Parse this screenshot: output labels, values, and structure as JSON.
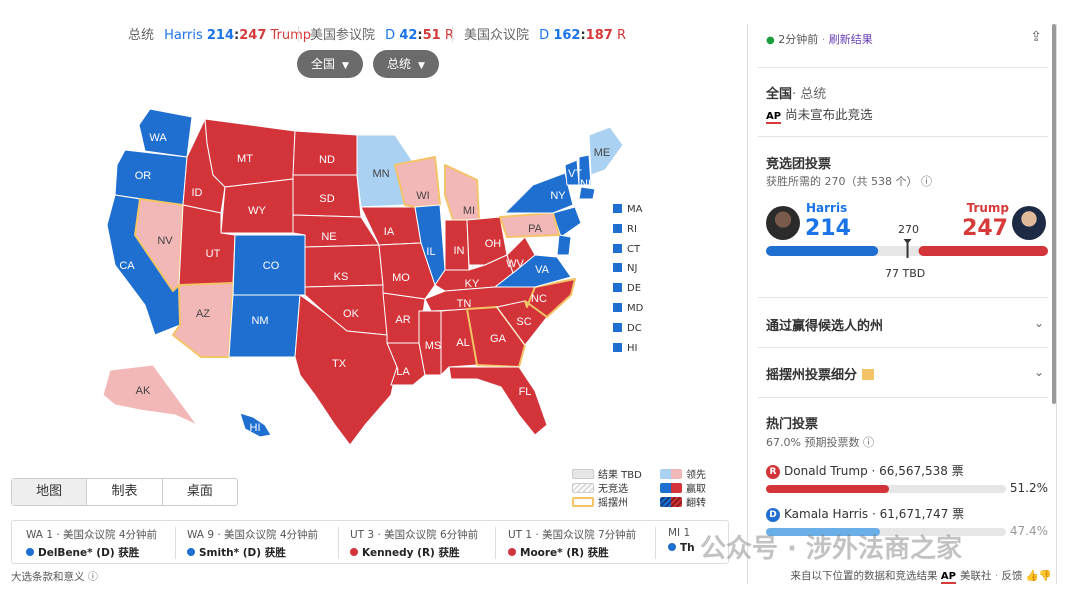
{
  "summary": {
    "president_label": "总统",
    "harris_name": "Harris",
    "harris_ev": "214",
    "sep": ":",
    "trump_ev": "247",
    "trump_name": "Trump",
    "senate_label": "美国参议院",
    "senate_d": "D",
    "senate_d_val": "42",
    "senate_r_val": "51",
    "senate_r": "R",
    "house_label": "美国众议院",
    "house_d": "D",
    "house_d_val": "162",
    "house_r_val": "187",
    "house_r": "R"
  },
  "filters": {
    "scope": "全国",
    "race": "总统"
  },
  "colors": {
    "dem_win": "#1f6fd0",
    "dem_lead": "#abd1f2",
    "rep_win": "#d2343a",
    "rep_lead": "#f2b8b8",
    "tbd": "#e6e6e6",
    "swing_outline": "#f5c367"
  },
  "states": {
    "WA": {
      "label": "WA",
      "status": "dem_win"
    },
    "OR": {
      "label": "OR",
      "status": "dem_win"
    },
    "CA": {
      "label": "CA",
      "status": "dem_win"
    },
    "NV": {
      "label": "NV",
      "status": "rep_lead",
      "swing": true
    },
    "ID": {
      "label": "ID",
      "status": "rep_win"
    },
    "MT": {
      "label": "MT",
      "status": "rep_win"
    },
    "WY": {
      "label": "WY",
      "status": "rep_win"
    },
    "UT": {
      "label": "UT",
      "status": "rep_win"
    },
    "AZ": {
      "label": "AZ",
      "status": "rep_lead",
      "swing": true
    },
    "CO": {
      "label": "CO",
      "status": "dem_win"
    },
    "NM": {
      "label": "NM",
      "status": "dem_win"
    },
    "ND": {
      "label": "ND",
      "status": "rep_win"
    },
    "SD": {
      "label": "SD",
      "status": "rep_win"
    },
    "NE": {
      "label": "NE",
      "status": "rep_win"
    },
    "KS": {
      "label": "KS",
      "status": "rep_win"
    },
    "OK": {
      "label": "OK",
      "status": "rep_win"
    },
    "TX": {
      "label": "TX",
      "status": "rep_win"
    },
    "MN": {
      "label": "MN",
      "status": "dem_lead"
    },
    "IA": {
      "label": "IA",
      "status": "rep_win"
    },
    "MO": {
      "label": "MO",
      "status": "rep_win"
    },
    "AR": {
      "label": "AR",
      "status": "rep_win"
    },
    "LA": {
      "label": "LA",
      "status": "rep_win"
    },
    "WI": {
      "label": "WI",
      "status": "rep_lead",
      "swing": true
    },
    "IL": {
      "label": "IL",
      "status": "dem_win"
    },
    "MI": {
      "label": "MI",
      "status": "rep_lead",
      "swing": true
    },
    "IN": {
      "label": "IN",
      "status": "rep_win"
    },
    "OH": {
      "label": "OH",
      "status": "rep_win"
    },
    "KY": {
      "label": "KY",
      "status": "rep_win"
    },
    "TN": {
      "label": "TN",
      "status": "rep_win"
    },
    "MS": {
      "label": "MS",
      "status": "rep_win"
    },
    "AL": {
      "label": "AL",
      "status": "rep_win"
    },
    "GA": {
      "label": "GA",
      "status": "rep_win",
      "swing": true
    },
    "FL": {
      "label": "FL",
      "status": "rep_win"
    },
    "SC": {
      "label": "SC",
      "status": "rep_win"
    },
    "NC": {
      "label": "NC",
      "status": "rep_win",
      "swing": true
    },
    "VA": {
      "label": "VA",
      "status": "dem_win"
    },
    "WV": {
      "label": "WV",
      "status": "rep_win"
    },
    "PA": {
      "label": "PA",
      "status": "rep_lead",
      "swing": true
    },
    "NY": {
      "label": "NY",
      "status": "dem_win"
    },
    "VT": {
      "label": "VT",
      "status": "dem_win"
    },
    "NH": {
      "label": "NH",
      "status": "dem_win"
    },
    "ME": {
      "label": "ME",
      "status": "dem_lead"
    },
    "AK": {
      "label": "AK",
      "status": "rep_lead"
    },
    "HI": {
      "label": "HI",
      "status": "dem_win"
    }
  },
  "small_states": [
    "MA",
    "RI",
    "CT",
    "NJ",
    "DE",
    "MD",
    "DC",
    "HI"
  ],
  "legend": {
    "tbd": "结果 TBD",
    "no_race": "无竞选",
    "swing": "摇摆州",
    "lead": "领先",
    "win": "赢取",
    "flip": "翻转"
  },
  "view_tabs": [
    "地图",
    "制表",
    "桌面"
  ],
  "ticker": [
    {
      "line1": "WA 1 · 美国众议院 4分钟前",
      "line2": "DelBene* (D) 获胜",
      "party": "D"
    },
    {
      "line1": "WA 9 · 美国众议院 4分钟前",
      "line2": "Smith* (D) 获胜",
      "party": "D"
    },
    {
      "line1": "UT 3 · 美国众议院 6分钟前",
      "line2": "Kennedy (R) 获胜",
      "party": "R"
    },
    {
      "line1": "UT 1 · 美国众议院 7分钟前",
      "line2": "Moore* (R) 获胜",
      "party": "R"
    },
    {
      "line1": "MI 1",
      "line2": "Th",
      "party": "D"
    }
  ],
  "footer_left": "大选条款和意义",
  "panel": {
    "updated": "2分钟前",
    "refresh": "刷新结果",
    "scope_title": "全国",
    "scope_sub": "· 总统",
    "ap_label": "AP",
    "ap_status": "尚未宣布此竞选",
    "ec_title": "竞选团投票",
    "ec_sub": "获胜所需的 270（共 538 个）",
    "harris_name": "Harris",
    "harris_ev": "214",
    "trump_name": "Trump",
    "trump_ev": "247",
    "threshold": "270",
    "tbd": "77 TBD",
    "section1": "通过赢得候选人的州",
    "section2": "摇摆州投票细分",
    "popular_title": "热门投票",
    "popular_sub": "67.0% 预期投票数",
    "trump_popular": "Donald Trump · 66,567,538 票",
    "trump_pct": "51.2%",
    "harris_popular": "Kamala Harris · 61,671,747 票",
    "harris_pct": "47.4%",
    "footer": "来自以下位置的数据和竞选结果",
    "footer_ap": "美联社",
    "feedback": "反馈"
  },
  "ev": {
    "harris": 214,
    "trump": 247,
    "total": 538
  },
  "popular_pct": {
    "trump": 51.2,
    "harris": 47.4
  },
  "watermark": "公众号 · 涉外法商之家"
}
